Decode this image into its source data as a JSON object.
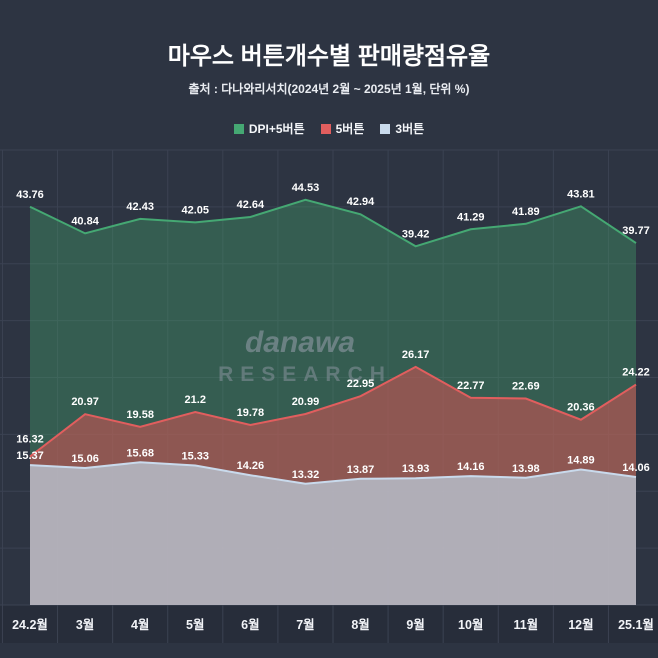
{
  "header": {
    "title": "마우스 버튼개수별 판매량점유율",
    "subtitle": "출처 : 다나와리서치(2024년 2월 ~ 2025년 1월, 단위 %)"
  },
  "watermark": {
    "line1": "danawa",
    "line2": "RESEARCH"
  },
  "colors": {
    "background": "#2d3442",
    "axis_strip": "#272d3a",
    "grid": "#3b4252",
    "title_text": "#ffffff",
    "value_label_text": "#ffffff"
  },
  "chart_data": {
    "type": "area",
    "title": "마우스 버튼개수별 판매량점유율",
    "unit": "%",
    "ylim": [
      0,
      50
    ],
    "grid": true,
    "legend_position": "top",
    "categories": [
      "24.2월",
      "3월",
      "4월",
      "5월",
      "6월",
      "7월",
      "8월",
      "9월",
      "10월",
      "11월",
      "12월",
      "25.1월"
    ],
    "series": [
      {
        "name": "DPI+5버튼",
        "color": "#45a873",
        "fill": "rgba(69,160,108,0.38)",
        "values": [
          43.76,
          40.84,
          42.43,
          42.05,
          42.64,
          44.53,
          42.94,
          39.42,
          41.29,
          41.89,
          43.81,
          39.77
        ]
      },
      {
        "name": "5버튼",
        "color": "#e15e5e",
        "fill": "rgba(201,84,84,0.60)",
        "values": [
          16.32,
          20.97,
          19.58,
          21.2,
          19.78,
          20.99,
          22.95,
          26.17,
          22.77,
          22.69,
          20.36,
          24.22
        ],
        "label_dy_overrides": {
          "0": -14
        }
      },
      {
        "name": "3버튼",
        "color": "#c9daec",
        "fill": "rgba(186,198,212,0.78)",
        "values": [
          15.37,
          15.06,
          15.68,
          15.33,
          14.26,
          13.32,
          13.87,
          13.93,
          14.16,
          13.98,
          14.89,
          14.06
        ],
        "label_dy": -6
      }
    ]
  }
}
